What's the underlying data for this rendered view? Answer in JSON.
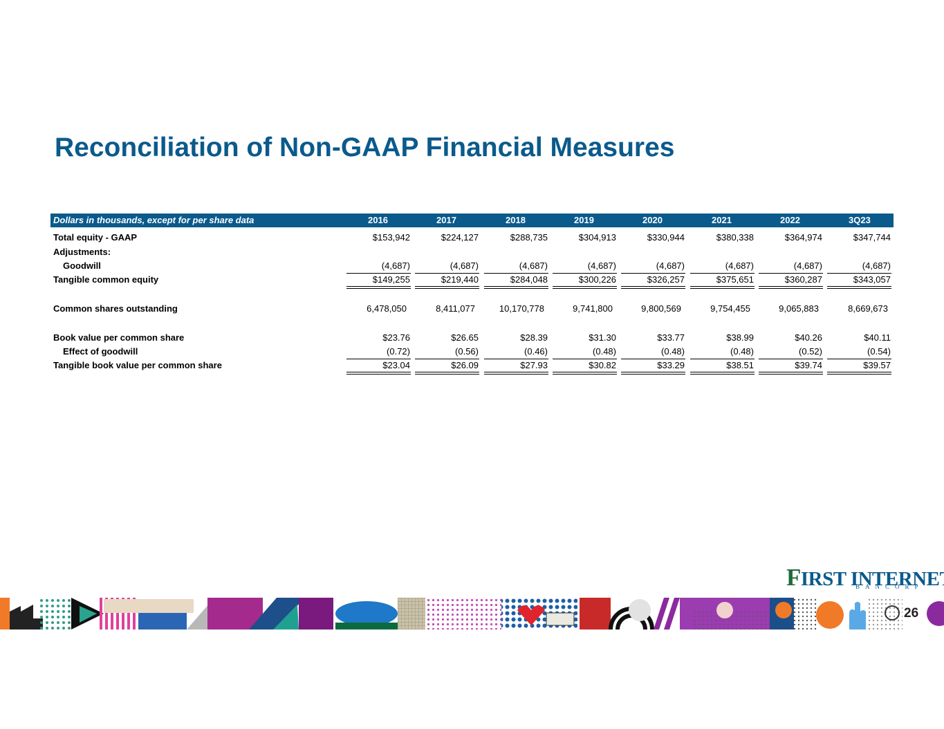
{
  "title": "Reconciliation of Non-GAAP Financial Measures",
  "table": {
    "caption": "Dollars in thousands, except for per share data",
    "years": [
      "2016",
      "2017",
      "2018",
      "2019",
      "2020",
      "2021",
      "2022",
      "3Q23"
    ],
    "rows": {
      "total_equity": {
        "label": "Total equity - GAAP",
        "values": [
          "$153,942",
          "$224,127",
          "$288,735",
          "$304,913",
          "$330,944",
          "$380,338",
          "$364,974",
          "$347,744"
        ]
      },
      "adjustments": {
        "label": "Adjustments:"
      },
      "goodwill": {
        "label": "Goodwill",
        "values": [
          "(4,687)",
          "(4,687)",
          "(4,687)",
          "(4,687)",
          "(4,687)",
          "(4,687)",
          "(4,687)",
          "(4,687)"
        ]
      },
      "tangible_equity": {
        "label": "Tangible common equity",
        "values": [
          "$149,255",
          "$219,440",
          "$284,048",
          "$300,226",
          "$326,257",
          "$375,651",
          "$360,287",
          "$343,057"
        ]
      },
      "shares": {
        "label": "Common shares outstanding",
        "values": [
          "6,478,050",
          "8,411,077",
          "10,170,778",
          "9,741,800",
          "9,800,569",
          "9,754,455",
          "9,065,883",
          "8,669,673"
        ]
      },
      "bvps": {
        "label": "Book value per common share",
        "values": [
          "$23.76",
          "$26.65",
          "$28.39",
          "$31.30",
          "$33.77",
          "$38.99",
          "$40.26",
          "$40.11"
        ]
      },
      "goodwill_effect": {
        "label": "Effect of goodwill",
        "values": [
          "(0.72)",
          "(0.56)",
          "(0.46)",
          "(0.48)",
          "(0.48)",
          "(0.48)",
          "(0.52)",
          "(0.54)"
        ]
      },
      "tbvps": {
        "label": "Tangible book value per common share",
        "values": [
          "$23.04",
          "$26.09",
          "$27.93",
          "$30.82",
          "$33.29",
          "$38.51",
          "$39.74",
          "$39.57"
        ]
      }
    }
  },
  "logo": {
    "first_letter": "F",
    "text": "IRST INTERNET",
    "sub": "BANCORP"
  },
  "page_number": "26",
  "colors": {
    "brand_blue": "#0b5a8c",
    "logo_green": "#1f6b3a"
  }
}
